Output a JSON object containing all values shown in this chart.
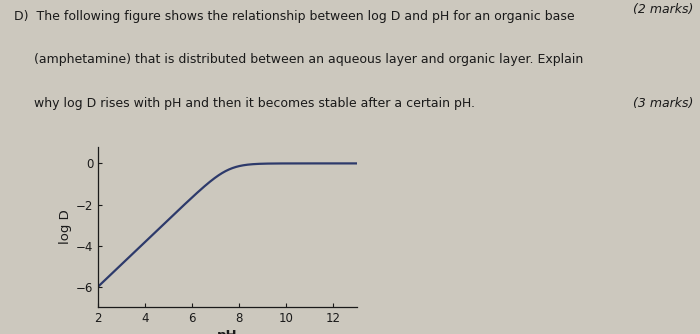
{
  "text_line1": "D)  The following figure shows the relationship between log D and pH for an organic base",
  "text_line2": "     (amphetamine) that is distributed between an aqueous layer and organic layer. Explain",
  "text_line3": "     why log D rises with pH and then it becomes stable after a certain pH.",
  "marks_top": "(2 marks)",
  "marks_bottom": "(3 marks)",
  "xlabel": "pH",
  "ylabel": "log D",
  "xlim": [
    2,
    13
  ],
  "ylim": [
    -7,
    0.8
  ],
  "xticks": [
    2,
    4,
    6,
    8,
    10,
    12
  ],
  "yticks": [
    0,
    -2,
    -4,
    -6
  ],
  "curve_color": "#2d3a6b",
  "bg_color": "#ccc8be",
  "text_color": "#1a1a1a",
  "pKa": 7.5,
  "log_D_min": -6.0,
  "log_D_max": 0.0,
  "text_fontsize": 9.0,
  "tick_fontsize": 8.5,
  "axis_label_fontsize": 9.5
}
